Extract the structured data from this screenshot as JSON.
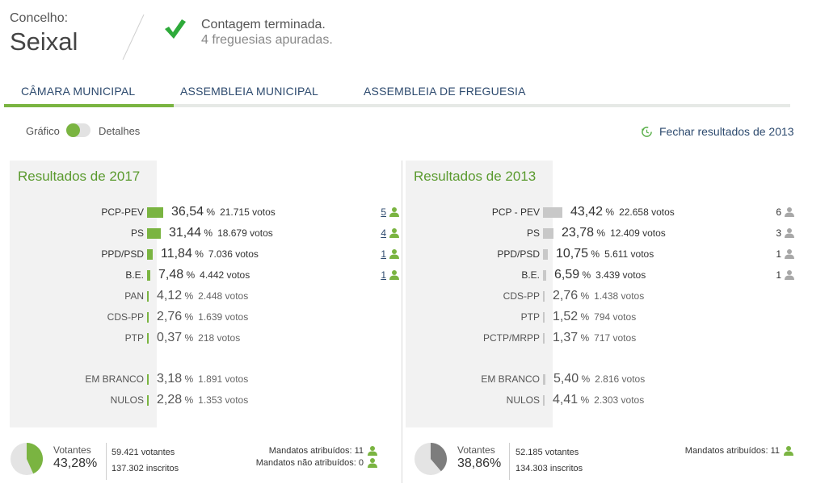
{
  "header": {
    "concelho_label": "Concelho:",
    "concelho_name": "Seixal",
    "status_title": "Contagem terminada.",
    "status_sub": "4 freguesias apuradas."
  },
  "tabs": [
    {
      "label": "CÂMARA MUNICIPAL",
      "active": true
    },
    {
      "label": "ASSEMBLEIA MUNICIPAL",
      "active": false
    },
    {
      "label": "ASSEMBLEIA DE FREGUESIA",
      "active": false
    }
  ],
  "toolbar": {
    "toggle_left": "Gráfico",
    "toggle_right": "Detalhes",
    "close_results": "Fechar resultados de 2013"
  },
  "colors": {
    "accent": "#7ab441",
    "bar_2017": "#7ab441",
    "bar_2013": "#c8c8c8",
    "link": "#2d4a6e",
    "title": "#5a9a2e"
  },
  "results_2017": {
    "title": "Resultados de 2017",
    "rows": [
      {
        "party": "PCP-PEV",
        "pct": "36,54",
        "votes": "21.715 votos",
        "seats": "5",
        "share": 0.3654
      },
      {
        "party": "PS",
        "pct": "31,44",
        "votes": "18.679 votos",
        "seats": "4",
        "share": 0.3144
      },
      {
        "party": "PPD/PSD",
        "pct": "11,84",
        "votes": "7.036 votos",
        "seats": "1",
        "share": 0.1184
      },
      {
        "party": "B.E.",
        "pct": "7,48",
        "votes": "4.442 votos",
        "seats": "1",
        "share": 0.0748
      },
      {
        "party": "PAN",
        "pct": "4,12",
        "votes": "2.448 votos",
        "seats": "",
        "share": 0.0412
      },
      {
        "party": "CDS-PP",
        "pct": "2,76",
        "votes": "1.639 votos",
        "seats": "",
        "share": 0.0276
      },
      {
        "party": "PTP",
        "pct": "0,37",
        "votes": "218 votos",
        "seats": "",
        "share": 0.0037
      }
    ],
    "others": [
      {
        "party": "EM BRANCO",
        "pct": "3,18",
        "votes": "1.891 votos",
        "share": 0.0318
      },
      {
        "party": "NULOS",
        "pct": "2,28",
        "votes": "1.353 votos",
        "share": 0.0228
      }
    ],
    "turnout_label": "Votantes",
    "turnout_pct": "43,28%",
    "turnout_share": 0.4328,
    "voters": "59.421 votantes",
    "registered": "137.302 inscritos",
    "seats_assigned": "Mandatos atribuídos: 11",
    "seats_unassigned": "Mandatos não atribuídos: 0"
  },
  "results_2013": {
    "title": "Resultados de 2013",
    "rows": [
      {
        "party": "PCP - PEV",
        "pct": "43,42",
        "votes": "22.658 votos",
        "seats": "6",
        "share": 0.4342
      },
      {
        "party": "PS",
        "pct": "23,78",
        "votes": "12.409 votos",
        "seats": "3",
        "share": 0.2378
      },
      {
        "party": "PPD/PSD",
        "pct": "10,75",
        "votes": "5.611 votos",
        "seats": "1",
        "share": 0.1075
      },
      {
        "party": "B.E.",
        "pct": "6,59",
        "votes": "3.439 votos",
        "seats": "1",
        "share": 0.0659
      },
      {
        "party": "CDS-PP",
        "pct": "2,76",
        "votes": "1.438 votos",
        "seats": "",
        "share": 0.0276
      },
      {
        "party": "PTP",
        "pct": "1,52",
        "votes": "794 votos",
        "seats": "",
        "share": 0.0152
      },
      {
        "party": "PCTP/MRPP",
        "pct": "1,37",
        "votes": "717 votos",
        "seats": "",
        "share": 0.0137
      }
    ],
    "others": [
      {
        "party": "EM BRANCO",
        "pct": "5,40",
        "votes": "2.816 votos",
        "share": 0.054
      },
      {
        "party": "NULOS",
        "pct": "4,41",
        "votes": "2.303 votos",
        "share": 0.0441
      }
    ],
    "turnout_label": "Votantes",
    "turnout_pct": "38,86%",
    "turnout_share": 0.3886,
    "voters": "52.185 votantes",
    "registered": "134.303 inscritos",
    "seats_assigned": "Mandatos atribuídos: 11"
  },
  "percent_symbol": "%"
}
